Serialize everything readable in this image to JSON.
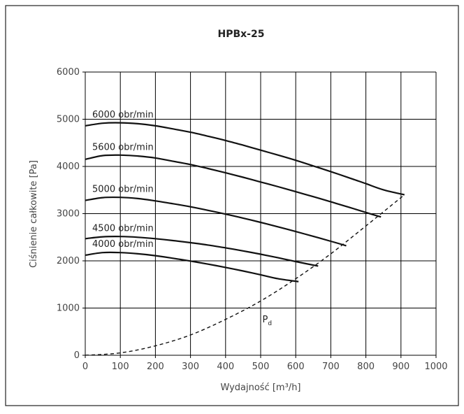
{
  "chart_data": {
    "type": "line",
    "title": "HPBx-25",
    "xlabel": "Wydajność [m³/h]",
    "ylabel": "Ciśnienie całkowite [Pa]",
    "xlim": [
      0,
      1000
    ],
    "ylim": [
      0,
      6000
    ],
    "xticks": [
      0,
      100,
      200,
      300,
      400,
      500,
      600,
      700,
      800,
      900,
      1000
    ],
    "yticks": [
      0,
      1000,
      2000,
      3000,
      4000,
      5000,
      6000
    ],
    "grid": true,
    "series": [
      {
        "name": "6000 obr/min",
        "x": [
          0,
          50,
          100,
          150,
          200,
          250,
          300,
          350,
          400,
          450,
          500,
          550,
          600,
          650,
          700,
          750,
          800,
          850,
          910
        ],
        "y": [
          4860,
          4915,
          4925,
          4905,
          4860,
          4795,
          4725,
          4640,
          4550,
          4450,
          4345,
          4240,
          4130,
          4010,
          3890,
          3765,
          3635,
          3505,
          3400
        ]
      },
      {
        "name": "5600 obr/min",
        "x": [
          0,
          50,
          100,
          150,
          200,
          250,
          300,
          350,
          400,
          450,
          500,
          550,
          600,
          650,
          700,
          750,
          800,
          843
        ],
        "y": [
          4150,
          4230,
          4240,
          4220,
          4180,
          4110,
          4040,
          3955,
          3865,
          3770,
          3670,
          3570,
          3465,
          3360,
          3250,
          3140,
          3025,
          2930
        ]
      },
      {
        "name": "5000 obr/min",
        "x": [
          0,
          50,
          100,
          150,
          200,
          250,
          300,
          350,
          400,
          450,
          500,
          550,
          600,
          650,
          700,
          744
        ],
        "y": [
          3280,
          3340,
          3345,
          3320,
          3270,
          3210,
          3145,
          3070,
          2990,
          2905,
          2815,
          2720,
          2620,
          2520,
          2415,
          2320
        ]
      },
      {
        "name": "4500 obr/min",
        "x": [
          0,
          50,
          100,
          150,
          200,
          250,
          300,
          350,
          400,
          450,
          500,
          550,
          600,
          664
        ],
        "y": [
          2470,
          2510,
          2515,
          2500,
          2470,
          2430,
          2385,
          2335,
          2275,
          2210,
          2140,
          2065,
          1985,
          1890
        ]
      },
      {
        "name": "4000 obr/min",
        "x": [
          0,
          50,
          100,
          150,
          200,
          250,
          300,
          350,
          400,
          450,
          500,
          550,
          608
        ],
        "y": [
          2120,
          2175,
          2175,
          2150,
          2110,
          2055,
          1995,
          1930,
          1860,
          1785,
          1705,
          1620,
          1560
        ]
      }
    ],
    "limit_curve": {
      "name": "Pd",
      "x": [
        0,
        100,
        200,
        300,
        400,
        500,
        600,
        700,
        800,
        910
      ],
      "y": [
        0,
        50,
        200,
        430,
        760,
        1150,
        1620,
        2150,
        2740,
        3400
      ]
    }
  }
}
